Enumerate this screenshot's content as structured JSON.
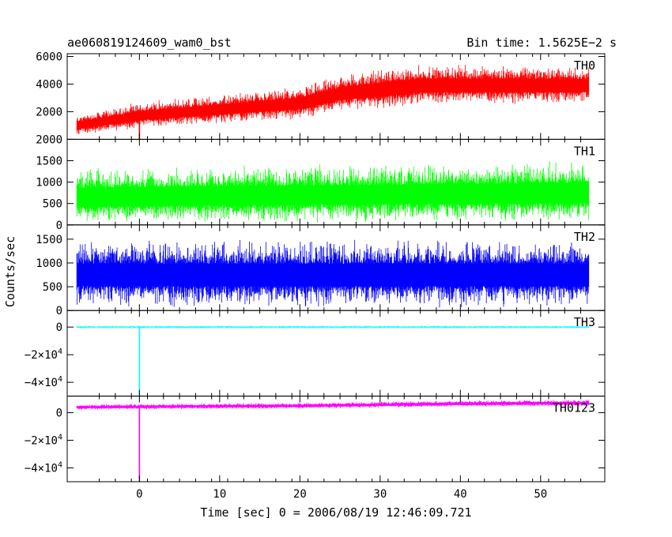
{
  "chart_data": {
    "type": "line",
    "title": "ae060819124609_wam0_bst",
    "subtitle": "Bin time: 1.5625E−2 s",
    "xlabel": "Time [sec] 0 = 2006/08/19 12:46:09.721",
    "ylabel": "Counts/sec",
    "xlim": [
      -9,
      58
    ],
    "x_ticks": [
      0,
      10,
      20,
      30,
      40,
      50
    ],
    "data_x_range": [
      -7.8,
      56
    ],
    "bin_time_s": 0.015625,
    "panels": [
      {
        "name": "TH0",
        "color": "#ff0000",
        "ylim": [
          0,
          6200
        ],
        "yticks": [
          {
            "v": 2000,
            "label": "2000"
          },
          {
            "v": 4000,
            "label": "4000"
          },
          {
            "v": 6000,
            "label": "6000"
          }
        ],
        "trend": [
          [
            -7.8,
            1000
          ],
          [
            0,
            1700
          ],
          [
            20,
            2600
          ],
          [
            25,
            3300
          ],
          [
            35,
            3900
          ],
          [
            56,
            3900
          ]
        ],
        "band": [
          [
            -7.8,
            350
          ],
          [
            0,
            450
          ],
          [
            20,
            550
          ],
          [
            30,
            700
          ],
          [
            56,
            650
          ]
        ],
        "spike": {
          "x": 0,
          "min": 0
        }
      },
      {
        "name": "TH1",
        "color": "#00ff00",
        "ylim": [
          0,
          2000
        ],
        "yticks": [
          {
            "v": 0,
            "label": "0"
          },
          {
            "v": 500,
            "label": "500"
          },
          {
            "v": 1000,
            "label": "1000"
          },
          {
            "v": 1500,
            "label": "1500"
          },
          {
            "v": 2000,
            "label": "2000"
          }
        ],
        "trend": [
          [
            -7.8,
            650
          ],
          [
            56,
            750
          ]
        ],
        "band": [
          [
            -7.8,
            300
          ],
          [
            56,
            330
          ]
        ],
        "spike": null
      },
      {
        "name": "TH2",
        "color": "#0000ff",
        "ylim": [
          0,
          1800
        ],
        "yticks": [
          {
            "v": 0,
            "label": "0"
          },
          {
            "v": 500,
            "label": "500"
          },
          {
            "v": 1000,
            "label": "1000"
          },
          {
            "v": 1500,
            "label": "1500"
          }
        ],
        "trend": [
          [
            -7.8,
            750
          ],
          [
            56,
            750
          ]
        ],
        "band": [
          [
            -7.8,
            330
          ],
          [
            56,
            330
          ]
        ],
        "spike": null
      },
      {
        "name": "TH3",
        "color": "#00ffff",
        "ylim": [
          -50000,
          12000
        ],
        "yticks": [
          {
            "v": 0,
            "label": "0"
          },
          {
            "v": -20000,
            "label": "−2×10",
            "sup": "4"
          },
          {
            "v": -40000,
            "label": "−4×10",
            "sup": "4"
          }
        ],
        "trend": [
          [
            -7.8,
            0
          ],
          [
            56,
            0
          ]
        ],
        "band": [
          [
            -7.8,
            400
          ],
          [
            56,
            400
          ]
        ],
        "spike": {
          "x": 0,
          "min": -50000
        }
      },
      {
        "name": "TH0123",
        "color": "#ff00ff",
        "ylim": [
          -50000,
          12000
        ],
        "yticks": [
          {
            "v": 0,
            "label": "0"
          },
          {
            "v": -20000,
            "label": "−2×10",
            "sup": "4"
          },
          {
            "v": -40000,
            "label": "−4×10",
            "sup": "4"
          }
        ],
        "trend": [
          [
            -7.8,
            4000
          ],
          [
            20,
            5000
          ],
          [
            40,
            6500
          ],
          [
            56,
            7000
          ]
        ],
        "band": [
          [
            -7.8,
            900
          ],
          [
            56,
            1100
          ]
        ],
        "spike": {
          "x": 0,
          "min": -50000
        }
      }
    ]
  }
}
